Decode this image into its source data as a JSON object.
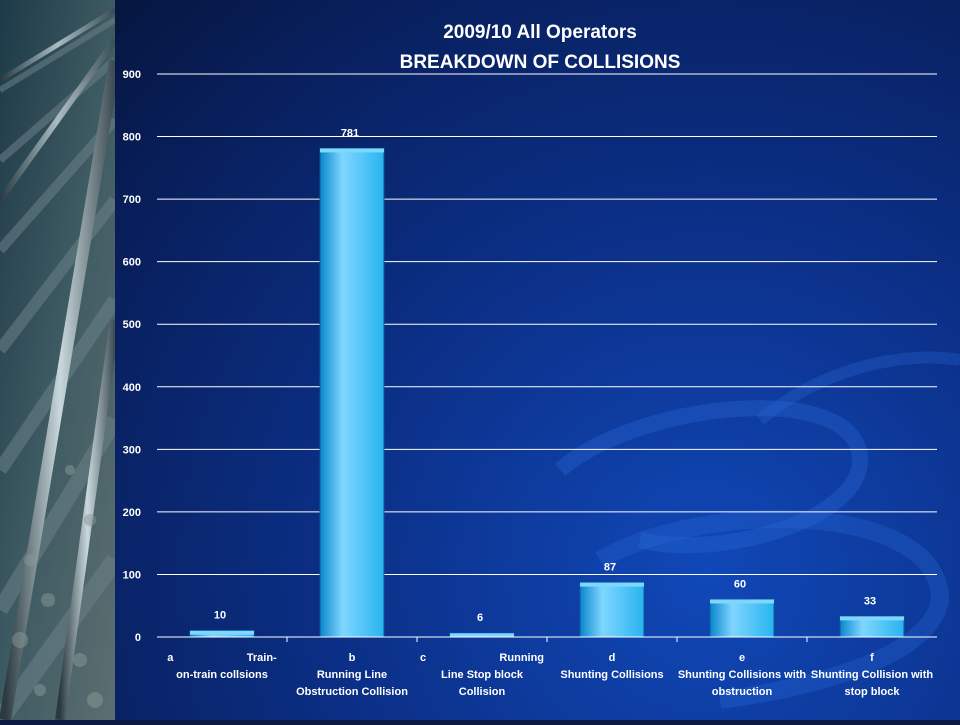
{
  "chart_data": {
    "type": "bar",
    "title": "2009/10 All Operators",
    "subtitle": "BREAKDOWN OF COLLISIONS",
    "xlabel": "",
    "ylabel": "",
    "ylim": [
      0,
      900
    ],
    "yticks": [
      0,
      100,
      200,
      300,
      400,
      500,
      600,
      700,
      800,
      900
    ],
    "grid": true,
    "categories": [
      [
        "a                        Train-",
        "on-train collsions"
      ],
      [
        "b",
        "Running Line",
        "Obstruction Collision"
      ],
      [
        "c                        Running",
        "Line Stop block",
        "Collision"
      ],
      [
        "d",
        "Shunting Collisions"
      ],
      [
        "e",
        "Shunting Collisions with",
        "obstruction"
      ],
      [
        "f",
        "Shunting Collision with",
        "stop block"
      ]
    ],
    "values": [
      10,
      781,
      6,
      87,
      60,
      33
    ],
    "data_labels": [
      "10",
      "781",
      "6",
      "87",
      "60",
      "33"
    ],
    "colors": {
      "bar_top": "#7fd6ff",
      "bar_mid": "#28b4f0",
      "bar_dark": "#0a86cc",
      "grid": "#ffffff",
      "text": "#ffffff"
    }
  }
}
